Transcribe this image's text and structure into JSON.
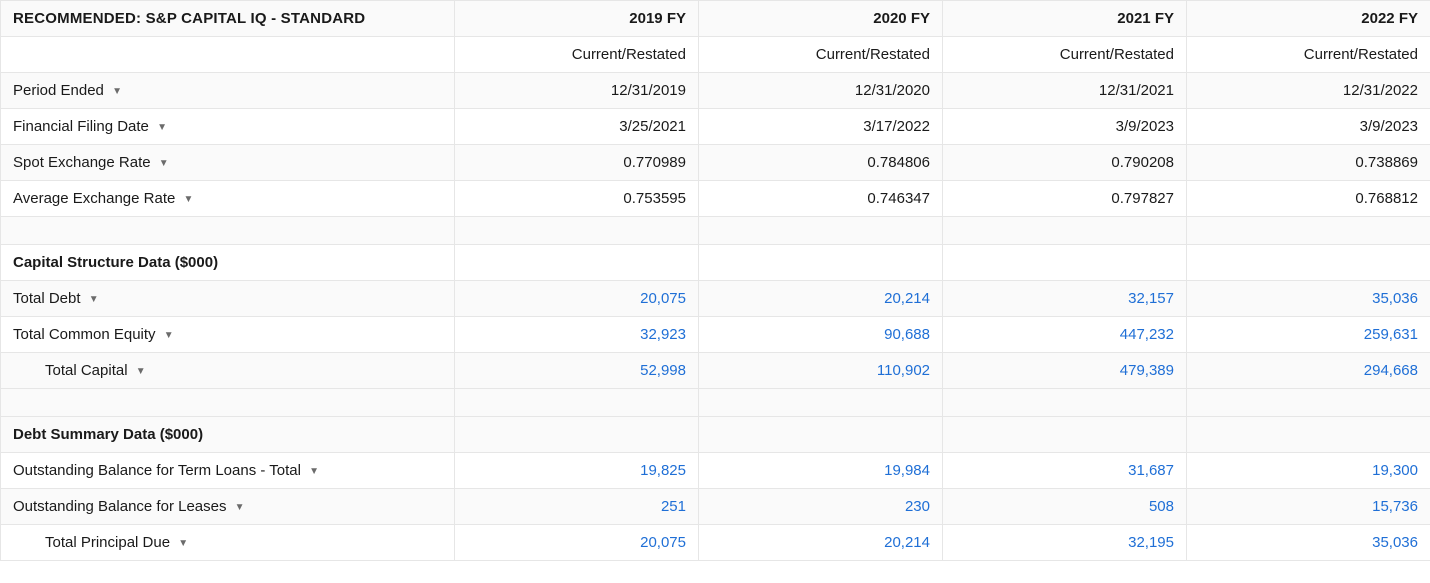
{
  "colors": {
    "text": "#1a1a1a",
    "link": "#1f6fd6",
    "border": "#e6e6e6",
    "row_alt_bg": "#fafafa",
    "caret": "#6b6b6b"
  },
  "table": {
    "title": "RECOMMENDED: S&P CAPITAL IQ - STANDARD",
    "columns": [
      "2019 FY",
      "2020 FY",
      "2021 FY",
      "2022 FY"
    ],
    "subheader": [
      "Current/Restated",
      "Current/Restated",
      "Current/Restated",
      "Current/Restated"
    ],
    "meta_rows": [
      {
        "label": "Period Ended",
        "values": [
          "12/31/2019",
          "12/31/2020",
          "12/31/2021",
          "12/31/2022"
        ]
      },
      {
        "label": "Financial Filing Date",
        "values": [
          "3/25/2021",
          "3/17/2022",
          "3/9/2023",
          "3/9/2023"
        ]
      },
      {
        "label": "Spot Exchange Rate",
        "values": [
          "0.770989",
          "0.784806",
          "0.790208",
          "0.738869"
        ]
      },
      {
        "label": "Average Exchange Rate",
        "values": [
          "0.753595",
          "0.746347",
          "0.797827",
          "0.768812"
        ]
      }
    ],
    "sections": [
      {
        "title": "Capital Structure Data ($000)",
        "rows": [
          {
            "label": "Total Debt",
            "indent": 0,
            "values": [
              "20,075",
              "20,214",
              "32,157",
              "35,036"
            ]
          },
          {
            "label": "Total Common Equity",
            "indent": 0,
            "values": [
              "32,923",
              "90,688",
              "447,232",
              "259,631"
            ]
          },
          {
            "label": "Total Capital",
            "indent": 1,
            "values": [
              "52,998",
              "110,902",
              "479,389",
              "294,668"
            ]
          }
        ]
      },
      {
        "title": "Debt Summary Data ($000)",
        "rows": [
          {
            "label": "Outstanding Balance for Term Loans - Total",
            "indent": 0,
            "values": [
              "19,825",
              "19,984",
              "31,687",
              "19,300"
            ]
          },
          {
            "label": "Outstanding Balance for Leases",
            "indent": 0,
            "values": [
              "251",
              "230",
              "508",
              "15,736"
            ]
          },
          {
            "label": "Total Principal Due",
            "indent": 1,
            "values": [
              "20,075",
              "20,214",
              "32,195",
              "35,036"
            ]
          }
        ]
      }
    ]
  }
}
